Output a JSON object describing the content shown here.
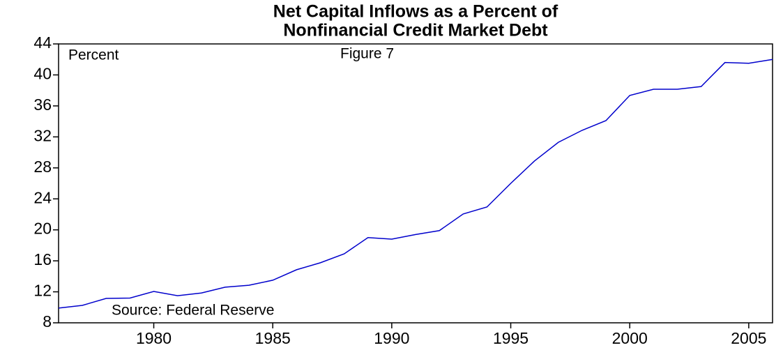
{
  "chart_data": {
    "type": "line",
    "title": [
      "Net Capital Inflows as a Percent of",
      "Nonfinancial Credit Market Debt"
    ],
    "annotations": [
      "Percent",
      "Figure 7",
      "Source: Federal Reserve"
    ],
    "x": [
      1976,
      1977,
      1978,
      1979,
      1980,
      1981,
      1982,
      1983,
      1984,
      1985,
      1986,
      1987,
      1988,
      1989,
      1990,
      1991,
      1992,
      1993,
      1994,
      1995,
      1996,
      1997,
      1998,
      1999,
      2000,
      2001,
      2002,
      2003,
      2004,
      2005,
      2006
    ],
    "series": [
      {
        "color": "#0000cc",
        "values": [
          9.9,
          10.25,
          11.15,
          11.2,
          12.05,
          11.5,
          11.85,
          12.6,
          12.85,
          13.5,
          14.85,
          15.75,
          16.9,
          19.0,
          18.8,
          19.4,
          19.9,
          22.05,
          22.95,
          26.0,
          28.9,
          31.3,
          32.85,
          34.1,
          37.35,
          38.15,
          38.15,
          38.5,
          41.6,
          41.5,
          42.0
        ]
      }
    ],
    "xlim": [
      1976,
      2006
    ],
    "xticks": [
      1980,
      1985,
      1990,
      1995,
      2000,
      2005
    ],
    "ylim": [
      8,
      44
    ],
    "yticks": [
      8,
      12,
      16,
      20,
      24,
      28,
      32,
      36,
      40,
      44
    ],
    "grid": false
  }
}
